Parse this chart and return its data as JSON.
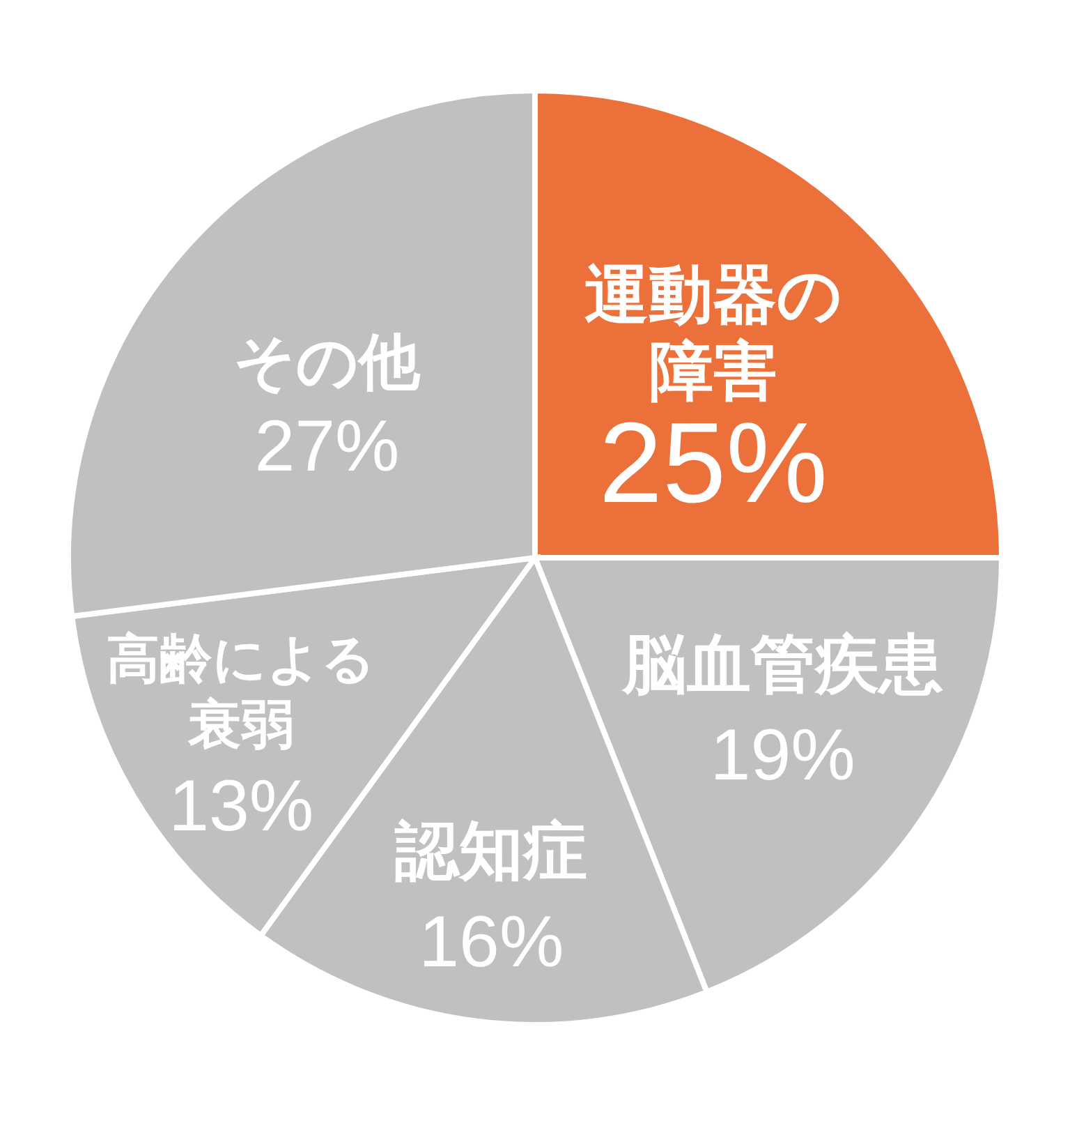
{
  "chart_data": {
    "type": "pie",
    "categories": [
      "運動器の障害",
      "脳血管疾患",
      "認知症",
      "高齢による衰弱",
      "その他"
    ],
    "values": [
      25,
      19,
      16,
      13,
      27
    ],
    "colors": [
      "#ec703a",
      "#c0c0c0",
      "#c0c0c0",
      "#c0c0c0",
      "#c0c0c0"
    ],
    "value_labels": [
      "25%",
      "19%",
      "16%",
      "13%",
      "27%"
    ]
  }
}
